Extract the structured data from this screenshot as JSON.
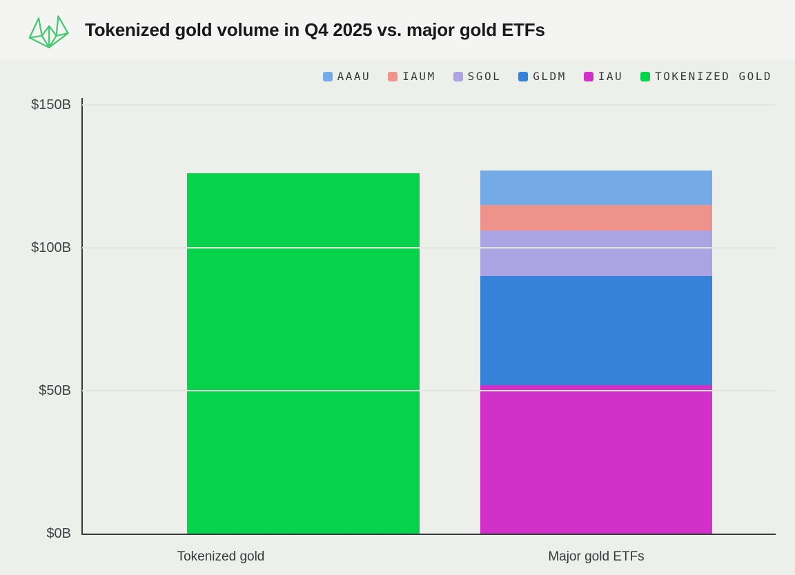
{
  "header": {
    "title": "Tokenized gold volume in Q4 2025 vs. major gold ETFs"
  },
  "legend": {
    "items": [
      {
        "label": "AAAU",
        "color": "#74abe6"
      },
      {
        "label": "IAUM",
        "color": "#ee928c"
      },
      {
        "label": "SGOL",
        "color": "#aca3e2"
      },
      {
        "label": "GLDM",
        "color": "#3582d8"
      },
      {
        "label": "IAU",
        "color": "#d231c9"
      },
      {
        "label": "TOKENIZED GOLD",
        "color": "#06d24c"
      }
    ]
  },
  "chart_data": {
    "type": "bar",
    "stacked": true,
    "title": "Tokenized gold volume in Q4 2025 vs. major gold ETFs",
    "categories": [
      "Tokenized gold",
      "Major gold ETFs"
    ],
    "series": [
      {
        "name": "AAAU",
        "color": "#74abe6",
        "values": [
          0,
          12
        ]
      },
      {
        "name": "IAUM",
        "color": "#ee928c",
        "values": [
          0,
          9
        ]
      },
      {
        "name": "SGOL",
        "color": "#aca3e2",
        "values": [
          0,
          16
        ]
      },
      {
        "name": "GLDM",
        "color": "#3582d8",
        "values": [
          0,
          38
        ]
      },
      {
        "name": "IAU",
        "color": "#d231c9",
        "values": [
          0,
          52
        ]
      },
      {
        "name": "TOKENIZED GOLD",
        "color": "#06d24c",
        "values": [
          126,
          0
        ]
      }
    ],
    "stack_order_bottom_to_top": [
      "TOKENIZED GOLD",
      "IAU",
      "GLDM",
      "SGOL",
      "IAUM",
      "AAAU"
    ],
    "ylim": [
      0,
      150
    ],
    "yticks": [
      {
        "label": "$0B",
        "value": 0
      },
      {
        "label": "$50B",
        "value": 50
      },
      {
        "label": "$100B",
        "value": 100
      },
      {
        "label": "$150B",
        "value": 150
      }
    ],
    "xlabel": "",
    "ylabel": "",
    "grid": true,
    "legend_position": "top-right"
  },
  "colors": {
    "background": "#edefeb",
    "header_background": "#f4f5f2",
    "axis": "#35393c",
    "gridline": "#e2e4de",
    "title_text": "#17191c",
    "tick_text": "#3e4246",
    "legend_text": "#383c38",
    "logo_green": "#46c873"
  }
}
